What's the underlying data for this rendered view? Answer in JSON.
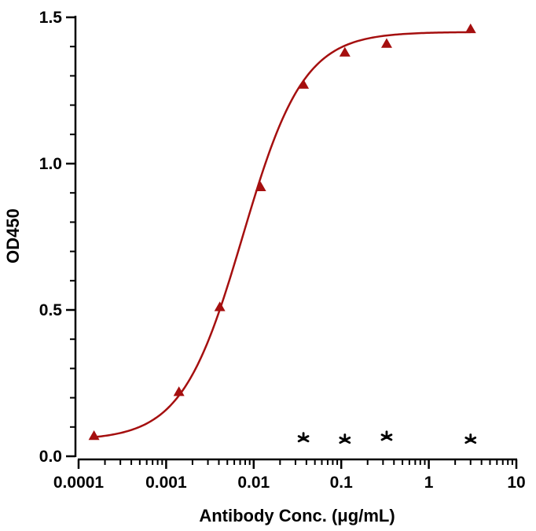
{
  "chart_data": {
    "type": "scatter",
    "xlabel": "Antibody Conc. (μg/mL)",
    "ylabel": "OD450",
    "x_scale": "log",
    "xlim": [
      0.0001,
      10
    ],
    "ylim": [
      0,
      1.5
    ],
    "x_ticks": [
      "0.0001",
      "0.001",
      "0.01",
      "0.1",
      "1",
      "10"
    ],
    "y_ticks": [
      "0.0",
      "0.5",
      "1.0",
      "1.5"
    ],
    "grid": false,
    "legend": "none",
    "series": [
      {
        "marker": "triangle",
        "color": "#a50f0f",
        "fit": "sigmoid",
        "x": [
          0.00015,
          0.0014,
          0.0041,
          0.012,
          0.037,
          0.11,
          0.33,
          3.0
        ],
        "y": [
          0.07,
          0.22,
          0.51,
          0.92,
          1.27,
          1.38,
          1.41,
          1.46
        ]
      },
      {
        "marker": "asterisk",
        "color": "#000000",
        "x": [
          0.037,
          0.11,
          0.33,
          3.0
        ],
        "y": [
          0.06,
          0.055,
          0.065,
          0.055
        ]
      }
    ],
    "fit_curve": {
      "bottom": 0.055,
      "top": 1.45,
      "ec50": 0.0075,
      "hill": 1.25
    }
  }
}
